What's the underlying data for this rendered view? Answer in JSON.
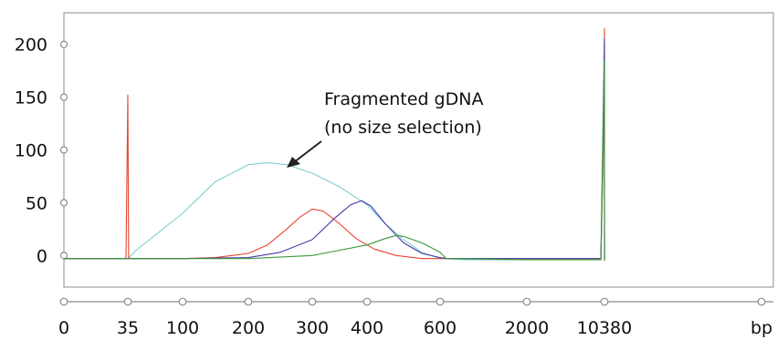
{
  "chart_data": {
    "type": "line",
    "title": "",
    "xlabel": "",
    "ylabel": "",
    "x_unit_label": "bp",
    "x_ticks": [
      "0",
      "35",
      "100",
      "200",
      "300",
      "400",
      "600",
      "2000",
      "10380"
    ],
    "y_ticks": [
      0,
      50,
      100,
      150,
      200
    ],
    "ylim": [
      -30,
      230
    ],
    "grid": false,
    "annotation": {
      "line1": "Fragmented gDNA",
      "line2": "(no size selection)",
      "points_to_series_color": "#7fcfcf"
    },
    "series": [
      {
        "color": "#7fcfcf",
        "points": [
          [
            0,
            -3
          ],
          [
            30,
            -3
          ],
          [
            35,
            -3
          ],
          [
            45,
            5
          ],
          [
            100,
            40
          ],
          [
            150,
            70
          ],
          [
            200,
            86
          ],
          [
            230,
            88
          ],
          [
            260,
            86
          ],
          [
            300,
            78
          ],
          [
            350,
            65
          ],
          [
            400,
            48
          ],
          [
            450,
            30
          ],
          [
            500,
            15
          ],
          [
            550,
            3
          ],
          [
            600,
            -3
          ],
          [
            700,
            -3
          ],
          [
            1000,
            -4
          ],
          [
            2000,
            -4
          ],
          [
            10000,
            -4
          ],
          [
            10380,
            150
          ],
          [
            10420,
            40
          ],
          [
            10600,
            0
          ],
          [
            11000,
            -3
          ],
          [
            12000,
            -3
          ]
        ]
      },
      {
        "color": "#e8442f",
        "points": [
          [
            0,
            -3
          ],
          [
            30,
            -3
          ],
          [
            34,
            -3
          ],
          [
            35,
            152
          ],
          [
            36,
            -2
          ],
          [
            38,
            -3
          ],
          [
            100,
            -3
          ],
          [
            150,
            -2
          ],
          [
            200,
            2
          ],
          [
            230,
            10
          ],
          [
            260,
            25
          ],
          [
            280,
            36
          ],
          [
            300,
            44
          ],
          [
            320,
            42
          ],
          [
            350,
            30
          ],
          [
            380,
            16
          ],
          [
            420,
            6
          ],
          [
            480,
            0
          ],
          [
            550,
            -3
          ],
          [
            700,
            -3
          ],
          [
            2000,
            -3
          ],
          [
            10000,
            -3
          ],
          [
            10370,
            150
          ],
          [
            10380,
            215
          ],
          [
            10400,
            100
          ],
          [
            10500,
            20
          ],
          [
            10800,
            0
          ],
          [
            11500,
            -5
          ]
        ]
      },
      {
        "color": "#4b3aa8",
        "points": [
          [
            0,
            -3
          ],
          [
            100,
            -3
          ],
          [
            200,
            -2
          ],
          [
            250,
            3
          ],
          [
            300,
            15
          ],
          [
            340,
            35
          ],
          [
            370,
            48
          ],
          [
            390,
            52
          ],
          [
            410,
            47
          ],
          [
            450,
            30
          ],
          [
            500,
            12
          ],
          [
            550,
            2
          ],
          [
            600,
            -2
          ],
          [
            700,
            -3
          ],
          [
            2000,
            -3
          ],
          [
            10000,
            -3
          ],
          [
            10380,
            205
          ],
          [
            10420,
            60
          ],
          [
            10700,
            5
          ],
          [
            11300,
            -3
          ]
        ]
      },
      {
        "color": "#3a9a3a",
        "points": [
          [
            0,
            -3
          ],
          [
            100,
            -3
          ],
          [
            200,
            -3
          ],
          [
            300,
            0
          ],
          [
            350,
            5
          ],
          [
            400,
            10
          ],
          [
            450,
            16
          ],
          [
            480,
            19
          ],
          [
            500,
            18
          ],
          [
            550,
            12
          ],
          [
            600,
            3
          ],
          [
            700,
            -3
          ],
          [
            2000,
            -4
          ],
          [
            10000,
            -4
          ],
          [
            10380,
            185
          ],
          [
            10420,
            50
          ],
          [
            10700,
            0
          ],
          [
            11500,
            -5
          ]
        ]
      }
    ]
  }
}
